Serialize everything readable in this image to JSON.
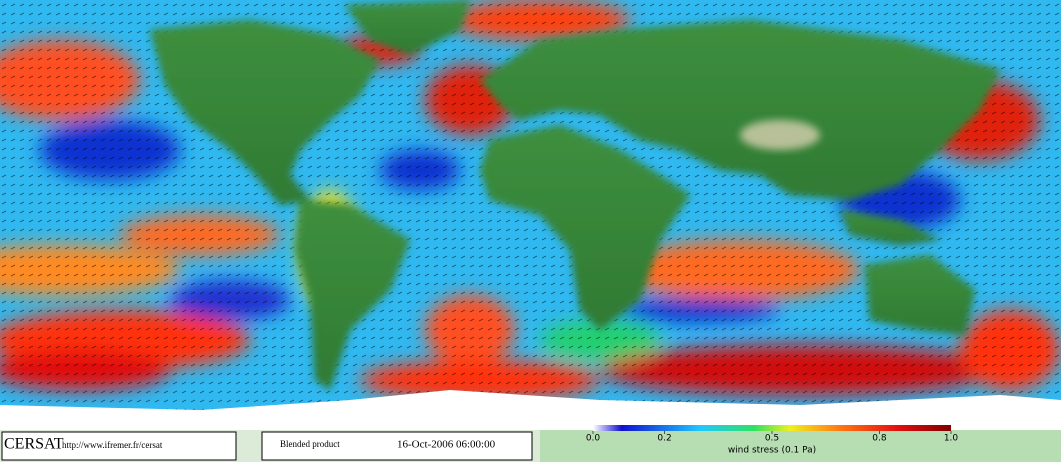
{
  "footer": {
    "logo": "CERSAT",
    "url": "http://www.ifremer.fr/cersat",
    "product": "Blended product",
    "date": "16-Oct-2006 06:00:00"
  },
  "colorbar": {
    "label": "wind stress (0.1 Pa)",
    "range": [
      0,
      1
    ],
    "ticks": [
      {
        "value": 0,
        "label": "0.0"
      },
      0.2,
      0.5,
      0.8,
      {
        "value": 1,
        "label": "1.0"
      }
    ]
  }
}
